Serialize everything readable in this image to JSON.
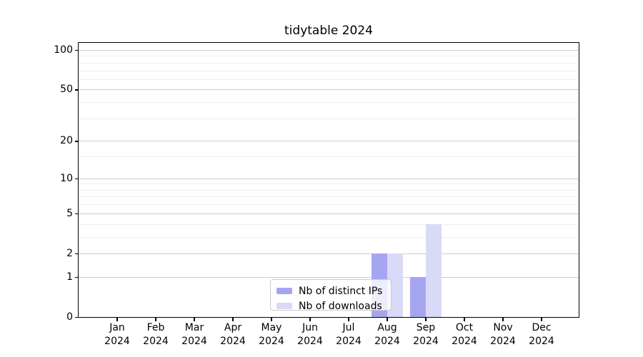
{
  "chart_data": {
    "type": "bar",
    "title": "tidytable 2024",
    "categories": [
      "Jan 2024",
      "Feb 2024",
      "Mar 2024",
      "Apr 2024",
      "May 2024",
      "Jun 2024",
      "Jul 2024",
      "Aug 2024",
      "Sep 2024",
      "Oct 2024",
      "Nov 2024",
      "Dec 2024"
    ],
    "series": [
      {
        "name": "Nb of distinct IPs",
        "color": "#a6a6f0",
        "values": [
          0,
          0,
          0,
          0,
          0,
          0,
          0,
          2,
          1,
          0,
          0,
          0
        ]
      },
      {
        "name": "Nb of downloads",
        "color": "#d9d9f8",
        "values": [
          0,
          0,
          0,
          0,
          0,
          0,
          0,
          2,
          4,
          0,
          0,
          0
        ]
      }
    ],
    "xlabel": "",
    "ylabel": "",
    "yscale": "log1p",
    "ylim": [
      0,
      113
    ],
    "yticks_major": [
      0,
      1,
      2,
      5,
      10,
      20,
      50,
      100
    ],
    "yticks_minor": [
      3,
      4,
      6,
      7,
      8,
      9,
      15,
      30,
      40,
      60,
      70,
      80,
      90
    ],
    "grid": true,
    "legend_position": "lower-center-inside"
  },
  "colors": {
    "axis": "#000000",
    "grid_major": "#cdcdcd",
    "grid_minor": "#efefef",
    "legend_border": "#cccccc"
  }
}
